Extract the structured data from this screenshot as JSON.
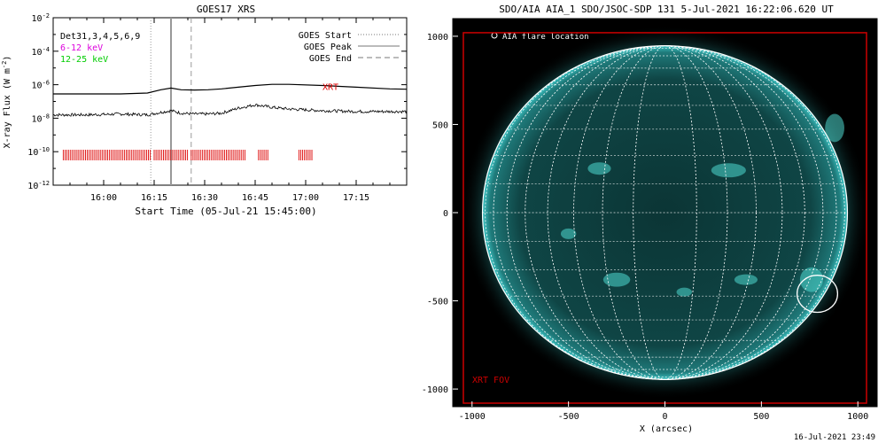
{
  "chart_data": [
    {
      "type": "line",
      "title": "GOES17 XRS",
      "xlabel": "Start Time (05-Jul-21 15:45:00)",
      "ylabel": "X-ray Flux (W m",
      "ylabel_sup": "-2",
      "ylabel_close": ")",
      "x_unit": "minutes after 15:45",
      "xlim": [
        0,
        105
      ],
      "ylim_log10": [
        -12,
        -2
      ],
      "yscale": "log",
      "x_ticks": [
        {
          "value": 15,
          "label": "16:00"
        },
        {
          "value": 30,
          "label": "16:15"
        },
        {
          "value": 45,
          "label": "16:30"
        },
        {
          "value": 60,
          "label": "16:45"
        },
        {
          "value": 75,
          "label": "17:00"
        },
        {
          "value": 90,
          "label": "17:15"
        }
      ],
      "y_ticks": [
        {
          "value": -12,
          "base": "10",
          "exp": "-12"
        },
        {
          "value": -10,
          "base": "10",
          "exp": "-10"
        },
        {
          "value": -8,
          "base": "10",
          "exp": "-8"
        },
        {
          "value": -6,
          "base": "10",
          "exp": "-6"
        },
        {
          "value": -4,
          "base": "10",
          "exp": "-4"
        },
        {
          "value": -2,
          "base": "10",
          "exp": "-2"
        }
      ],
      "legend_left": [
        {
          "text": "Det31,3,4,5,6,9",
          "color": "#000000"
        },
        {
          "text": "6-12 keV",
          "color": "#dd00dd"
        },
        {
          "text": "12-25 keV",
          "color": "#00cc00"
        }
      ],
      "legend_right": [
        {
          "text": "GOES Start",
          "style": "dotted"
        },
        {
          "text": "GOES Peak",
          "style": "solid"
        },
        {
          "text": "GOES End",
          "style": "dashed"
        }
      ],
      "goes_lines": {
        "start": 29,
        "peak": 35,
        "end": 41
      },
      "series": [
        {
          "name": "",
          "color": "#000000",
          "x": [
            0,
            10,
            20,
            28,
            32,
            35,
            38,
            42,
            46,
            50,
            55,
            60,
            65,
            70,
            80,
            90,
            100,
            105
          ],
          "log_flux": [
            -6.55,
            -6.55,
            -6.55,
            -6.5,
            -6.3,
            -6.2,
            -6.3,
            -6.32,
            -6.3,
            -6.25,
            -6.15,
            -6.05,
            -5.98,
            -5.98,
            -6.05,
            -6.15,
            -6.25,
            -6.27
          ]
        },
        {
          "name": "",
          "color": "#000000",
          "noisy": true,
          "x": [
            0,
            10,
            20,
            28,
            32,
            35,
            38,
            42,
            46,
            50,
            55,
            60,
            65,
            70,
            80,
            90,
            100,
            105
          ],
          "log_flux": [
            -7.8,
            -7.8,
            -7.75,
            -7.8,
            -7.65,
            -7.55,
            -7.7,
            -7.75,
            -7.75,
            -7.7,
            -7.4,
            -7.2,
            -7.35,
            -7.45,
            -7.55,
            -7.6,
            -7.6,
            -7.6
          ]
        }
      ],
      "xrt_label": {
        "text": "XRT",
        "x": 80,
        "log_flux": -6.3,
        "color": "#dd0000"
      },
      "xrt_obs_log_flux": -10.2,
      "xrt_obs_segments": [
        [
          3,
          29
        ],
        [
          30,
          40
        ],
        [
          41,
          57
        ],
        [
          61,
          64
        ],
        [
          73,
          77
        ]
      ]
    },
    {
      "type": "image",
      "title": "SDO/AIA AIA_1 SDO/JSOC-SDP 131  5-Jul-2021 16:22:06.620 UT",
      "xlabel": "X (arcsec)",
      "ylabel": "",
      "xlim": [
        -1100,
        1100
      ],
      "ylim": [
        -1100,
        1100
      ],
      "x_ticks": [
        -1000,
        -500,
        0,
        500,
        1000
      ],
      "y_ticks": [
        -1000,
        -500,
        0,
        500,
        1000
      ],
      "solar_radius_arcsec": 946,
      "grid_step_deg": 10,
      "flare_location": {
        "x": 790,
        "y": -460,
        "label": "AIA flare location"
      },
      "xrt_fov": {
        "x0": -1045,
        "x1": 1045,
        "y0": -1080,
        "y1": 1020,
        "label": "XRT FOV",
        "color": "#cc0000"
      },
      "colors": {
        "disk": "#0c3d3d",
        "limb": "#2aa6a6",
        "background": "#000000",
        "grid": "#ffffff"
      }
    }
  ],
  "footer": {
    "timestamp": "16-Jul-2021 23:49"
  }
}
